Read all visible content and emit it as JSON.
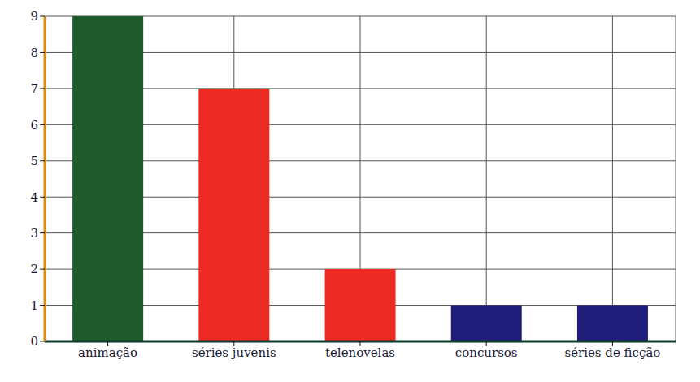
{
  "chart_data": {
    "type": "bar",
    "categories": [
      "animação",
      "séries juvenis",
      "telenovelas",
      "concursos",
      "séries de ficção"
    ],
    "values": [
      9,
      7,
      2,
      1,
      1
    ],
    "colors": [
      "#1f5a2a",
      "#ee2a24",
      "#ee2a24",
      "#1e1e7a",
      "#1e1e7a"
    ],
    "ylim": [
      0,
      9
    ],
    "yticks": [
      0,
      1,
      2,
      3,
      4,
      5,
      6,
      7,
      8,
      9
    ],
    "grid": true
  }
}
